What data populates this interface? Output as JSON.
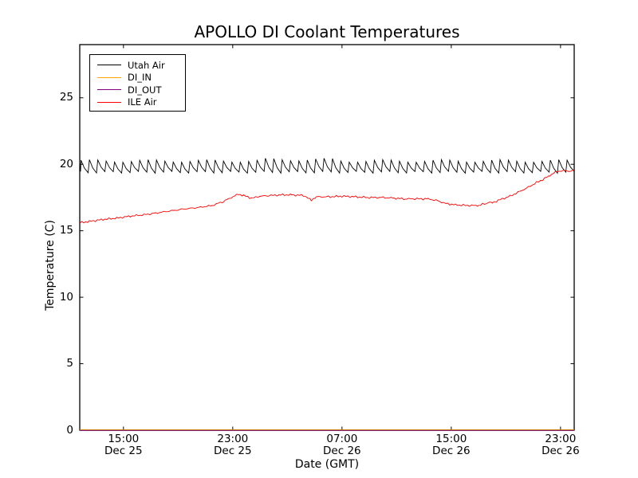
{
  "chart_data": {
    "type": "line",
    "title": "APOLLO DI Coolant Temperatures",
    "xlabel": "Date (GMT)",
    "ylabel": "Temperature (C)",
    "x_axis": {
      "unit": "hours since Dec 25 00:00 GMT",
      "range": [
        11.8,
        48.0
      ],
      "ticks": [
        {
          "hour": 15,
          "time": "15:00",
          "date": "Dec 25"
        },
        {
          "hour": 23,
          "time": "23:00",
          "date": "Dec 25"
        },
        {
          "hour": 31,
          "time": "07:00",
          "date": "Dec 26"
        },
        {
          "hour": 39,
          "time": "15:00",
          "date": "Dec 26"
        },
        {
          "hour": 47,
          "time": "23:00",
          "date": "Dec 26"
        }
      ]
    },
    "y_axis": {
      "range": [
        0,
        29
      ],
      "ticks": [
        0,
        5,
        10,
        15,
        20,
        25
      ]
    },
    "legend_position": "upper left",
    "grid": false,
    "series": [
      {
        "name": "Utah Air",
        "color": "#000000",
        "pattern": "sawtooth",
        "description": "thermostat-style sawtooth oscillation",
        "cycles": 59,
        "x_range": [
          11.8,
          48.0
        ],
        "trough": 19.4,
        "peak": 20.25,
        "start_value": 20.0
      },
      {
        "name": "DI_IN",
        "color": "#ffa500",
        "pattern": "constant",
        "value": 0
      },
      {
        "name": "DI_OUT",
        "color": "#800080",
        "pattern": "constant",
        "value": 0
      },
      {
        "name": "ILE Air",
        "color": "#ff0000",
        "pattern": "points",
        "points": [
          [
            11.8,
            15.6
          ],
          [
            12.5,
            15.7
          ],
          [
            13.5,
            15.85
          ],
          [
            14.5,
            15.95
          ],
          [
            15.5,
            16.1
          ],
          [
            16.5,
            16.2
          ],
          [
            17.5,
            16.35
          ],
          [
            18.5,
            16.5
          ],
          [
            19.5,
            16.65
          ],
          [
            20.5,
            16.75
          ],
          [
            21.5,
            16.9
          ],
          [
            22.3,
            17.2
          ],
          [
            23.0,
            17.55
          ],
          [
            23.4,
            17.75
          ],
          [
            23.8,
            17.65
          ],
          [
            24.4,
            17.45
          ],
          [
            25.0,
            17.6
          ],
          [
            25.8,
            17.65
          ],
          [
            26.5,
            17.7
          ],
          [
            27.3,
            17.7
          ],
          [
            28.2,
            17.65
          ],
          [
            28.75,
            17.3
          ],
          [
            29.1,
            17.55
          ],
          [
            30.0,
            17.55
          ],
          [
            31.0,
            17.6
          ],
          [
            32.0,
            17.55
          ],
          [
            33.0,
            17.5
          ],
          [
            34.0,
            17.5
          ],
          [
            34.8,
            17.45
          ],
          [
            35.6,
            17.4
          ],
          [
            36.5,
            17.4
          ],
          [
            37.3,
            17.4
          ],
          [
            38.0,
            17.25
          ],
          [
            38.6,
            17.05
          ],
          [
            39.3,
            16.95
          ],
          [
            40.2,
            16.9
          ],
          [
            41.0,
            16.9
          ],
          [
            41.5,
            17.05
          ],
          [
            41.8,
            17.15
          ],
          [
            42.0,
            17.1
          ],
          [
            42.6,
            17.35
          ],
          [
            43.3,
            17.6
          ],
          [
            43.9,
            17.9
          ],
          [
            44.5,
            18.2
          ],
          [
            45.1,
            18.55
          ],
          [
            45.7,
            18.85
          ],
          [
            46.2,
            19.15
          ],
          [
            46.6,
            19.4
          ],
          [
            46.9,
            19.5
          ],
          [
            47.3,
            19.5
          ],
          [
            47.6,
            19.5
          ],
          [
            47.8,
            19.45
          ],
          [
            48.0,
            19.65
          ]
        ]
      }
    ]
  }
}
